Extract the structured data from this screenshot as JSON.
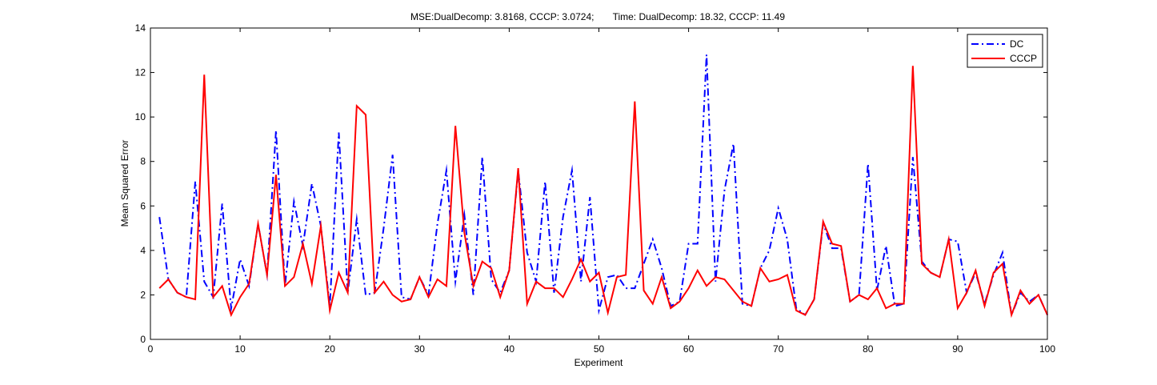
{
  "figure": {
    "title": "MSE:DualDecomp: 3.8168, CCCP: 3.0724;       Time: DualDecomp: 18.32, CCCP: 11.49"
  },
  "chart_data": {
    "type": "line",
    "title": "MSE:DualDecomp: 3.8168, CCCP: 3.0724;       Time: DualDecomp: 18.32, CCCP: 11.49",
    "xlabel": "Experiment",
    "ylabel": "Mean Squared Error",
    "xlim": [
      0,
      100
    ],
    "ylim": [
      0,
      14
    ],
    "xticks": [
      0,
      10,
      20,
      30,
      40,
      50,
      60,
      70,
      80,
      90,
      100
    ],
    "yticks": [
      0,
      2,
      4,
      6,
      8,
      10,
      12,
      14
    ],
    "grid": false,
    "legend_position": "top-right",
    "x": [
      1,
      2,
      3,
      4,
      5,
      6,
      7,
      8,
      9,
      10,
      11,
      12,
      13,
      14,
      15,
      16,
      17,
      18,
      19,
      20,
      21,
      22,
      23,
      24,
      25,
      26,
      27,
      28,
      29,
      30,
      31,
      32,
      33,
      34,
      35,
      36,
      37,
      38,
      39,
      40,
      41,
      42,
      43,
      44,
      45,
      46,
      47,
      48,
      49,
      50,
      51,
      52,
      53,
      54,
      55,
      56,
      57,
      58,
      59,
      60,
      61,
      62,
      63,
      64,
      65,
      66,
      67,
      68,
      69,
      70,
      71,
      72,
      73,
      74,
      75,
      76,
      77,
      78,
      79,
      80,
      81,
      82,
      83,
      84,
      85,
      86,
      87,
      88,
      89,
      90,
      91,
      92,
      93,
      94,
      95,
      96,
      97,
      98,
      99,
      100
    ],
    "series": [
      {
        "name": "DC",
        "color": "#0000ff",
        "style": "dashdot",
        "values": [
          5.5,
          2.7,
          2.1,
          1.9,
          7.1,
          2.6,
          1.9,
          6.1,
          1.4,
          3.6,
          2.4,
          5.2,
          2.9,
          9.4,
          2.4,
          6.2,
          4.2,
          7.0,
          5.1,
          1.5,
          9.3,
          2.1,
          5.4,
          2.0,
          2.1,
          5.0,
          8.3,
          1.9,
          1.8,
          2.8,
          2.0,
          5.2,
          7.6,
          2.6,
          5.6,
          2.0,
          8.2,
          2.7,
          2.1,
          3.1,
          7.6,
          3.9,
          2.6,
          7.1,
          2.1,
          5.5,
          7.6,
          2.6,
          6.4,
          1.3,
          2.8,
          2.9,
          2.3,
          2.3,
          3.4,
          4.5,
          3.2,
          1.5,
          1.7,
          4.3,
          4.3,
          12.8,
          2.6,
          6.7,
          8.8,
          1.6,
          1.5,
          3.2,
          4.0,
          5.9,
          4.5,
          1.4,
          1.1,
          1.8,
          5.2,
          4.1,
          4.1,
          1.7,
          2.0,
          7.9,
          2.2,
          4.2,
          1.5,
          1.6,
          8.2,
          3.5,
          3.0,
          2.8,
          4.5,
          4.4,
          2.1,
          3.0,
          1.6,
          2.9,
          3.9,
          1.1,
          2.1,
          1.7,
          2.0,
          1.1
        ]
      },
      {
        "name": "CCCP",
        "color": "#ff0000",
        "style": "solid",
        "values": [
          2.3,
          2.7,
          2.1,
          1.9,
          1.8,
          11.9,
          1.9,
          2.4,
          1.1,
          1.9,
          2.5,
          5.2,
          2.9,
          7.4,
          2.4,
          2.8,
          4.3,
          2.5,
          5.1,
          1.3,
          3.0,
          2.1,
          10.5,
          10.1,
          2.1,
          2.6,
          2.0,
          1.7,
          1.8,
          2.8,
          1.9,
          2.7,
          2.4,
          9.6,
          4.8,
          2.4,
          3.5,
          3.2,
          1.9,
          3.1,
          7.7,
          1.6,
          2.6,
          2.3,
          2.3,
          1.9,
          2.7,
          3.6,
          2.6,
          3.0,
          1.2,
          2.8,
          2.9,
          10.7,
          2.2,
          1.6,
          2.8,
          1.4,
          1.7,
          2.3,
          3.1,
          2.4,
          2.8,
          2.7,
          2.2,
          1.7,
          1.5,
          3.2,
          2.6,
          2.7,
          2.9,
          1.3,
          1.1,
          1.8,
          5.3,
          4.3,
          4.2,
          1.7,
          2.0,
          1.8,
          2.3,
          1.4,
          1.6,
          1.6,
          12.3,
          3.4,
          3.0,
          2.8,
          4.5,
          1.4,
          2.1,
          3.1,
          1.5,
          3.0,
          3.4,
          1.1,
          2.2,
          1.6,
          2.0,
          1.1
        ]
      }
    ]
  }
}
